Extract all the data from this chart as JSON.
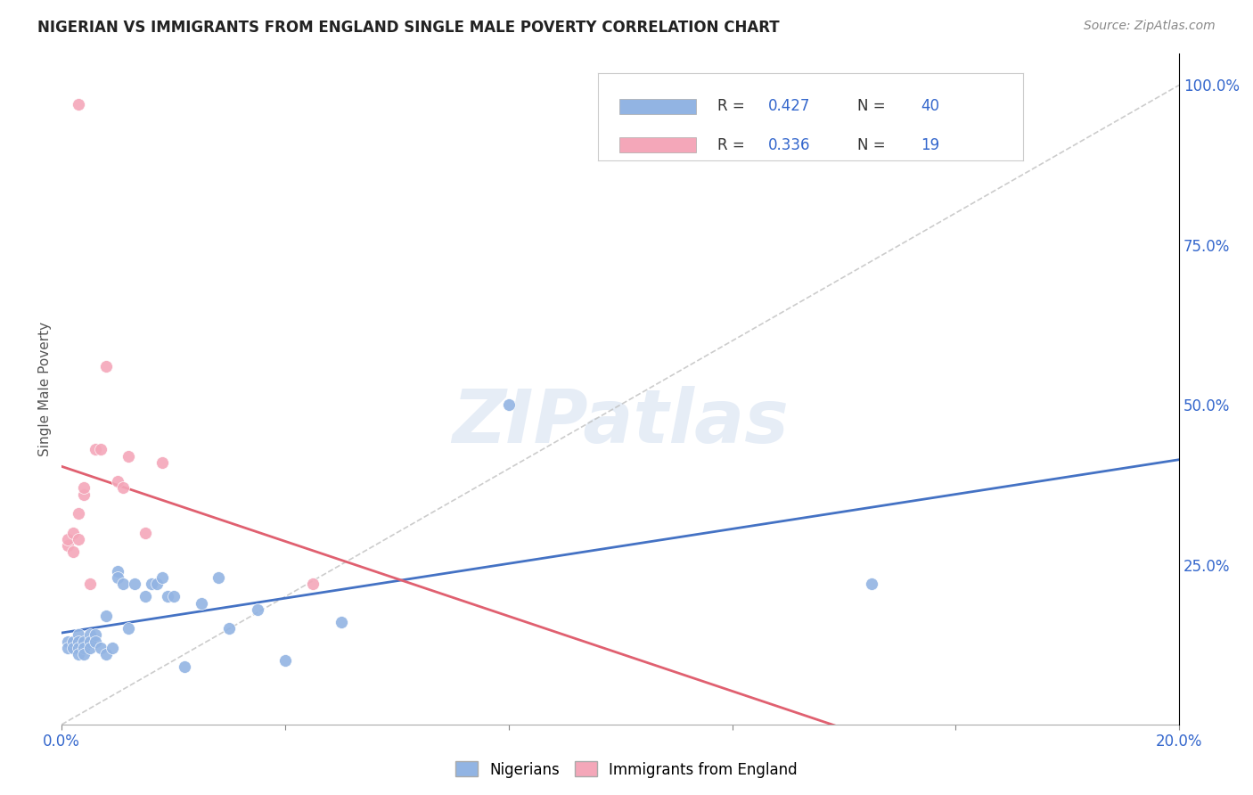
{
  "title": "NIGERIAN VS IMMIGRANTS FROM ENGLAND SINGLE MALE POVERTY CORRELATION CHART",
  "source": "Source: ZipAtlas.com",
  "ylabel": "Single Male Poverty",
  "right_yticks": [
    "100.0%",
    "75.0%",
    "50.0%",
    "25.0%"
  ],
  "right_ytick_vals": [
    1.0,
    0.75,
    0.5,
    0.25
  ],
  "xlim": [
    0.0,
    0.2
  ],
  "ylim": [
    0.0,
    1.05
  ],
  "nigerian_R": 0.427,
  "nigerian_N": 40,
  "england_R": 0.336,
  "england_N": 19,
  "nigerian_color": "#92b4e3",
  "england_color": "#f4a7b9",
  "nigerian_line_color": "#4472c4",
  "england_line_color": "#e06070",
  "diagonal_color": "#c0c0c0",
  "background_color": "#ffffff",
  "grid_color": "#e0e0e0",
  "watermark": "ZIPatlas",
  "nigerian_x": [
    0.001,
    0.001,
    0.002,
    0.002,
    0.003,
    0.003,
    0.003,
    0.003,
    0.004,
    0.004,
    0.004,
    0.005,
    0.005,
    0.005,
    0.006,
    0.006,
    0.007,
    0.008,
    0.008,
    0.009,
    0.01,
    0.01,
    0.011,
    0.012,
    0.013,
    0.015,
    0.016,
    0.017,
    0.018,
    0.019,
    0.02,
    0.022,
    0.025,
    0.028,
    0.03,
    0.035,
    0.04,
    0.05,
    0.08,
    0.145
  ],
  "nigerian_y": [
    0.13,
    0.12,
    0.13,
    0.12,
    0.14,
    0.13,
    0.12,
    0.11,
    0.13,
    0.12,
    0.11,
    0.14,
    0.13,
    0.12,
    0.14,
    0.13,
    0.12,
    0.11,
    0.17,
    0.12,
    0.24,
    0.23,
    0.22,
    0.15,
    0.22,
    0.2,
    0.22,
    0.22,
    0.23,
    0.2,
    0.2,
    0.09,
    0.19,
    0.23,
    0.15,
    0.18,
    0.1,
    0.16,
    0.5,
    0.22
  ],
  "england_x": [
    0.001,
    0.001,
    0.002,
    0.002,
    0.003,
    0.003,
    0.004,
    0.004,
    0.005,
    0.006,
    0.007,
    0.008,
    0.01,
    0.011,
    0.012,
    0.015,
    0.018,
    0.045,
    0.003
  ],
  "england_y": [
    0.28,
    0.29,
    0.27,
    0.3,
    0.33,
    0.29,
    0.36,
    0.37,
    0.22,
    0.43,
    0.43,
    0.56,
    0.38,
    0.37,
    0.42,
    0.3,
    0.41,
    0.22,
    0.97
  ]
}
